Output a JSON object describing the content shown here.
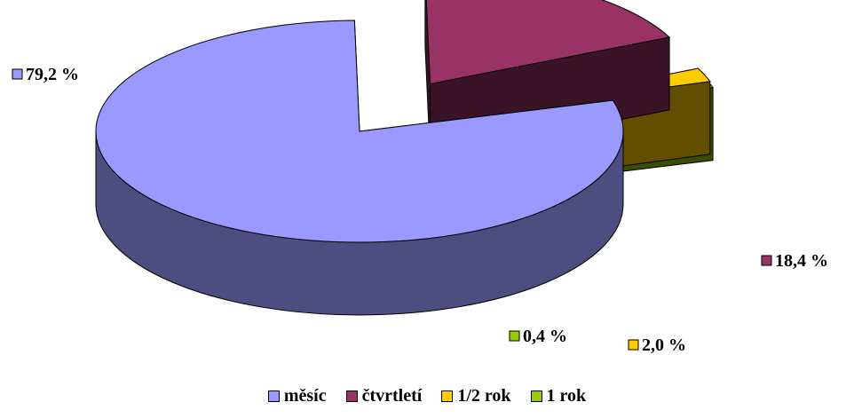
{
  "chart_data": {
    "type": "pie",
    "style": "3d-exploded",
    "categories": [
      "měsíc",
      "čtvrtletí",
      "1/2 rok",
      "1 rok"
    ],
    "values": [
      79.2,
      18.4,
      2.0,
      0.4
    ],
    "data_labels": [
      "79,2 %",
      "18,4 %",
      "2,0 %",
      "0,4 %"
    ],
    "colors": [
      "#9999ff",
      "#993366",
      "#ffcc00",
      "#99cc00"
    ],
    "legend_position": "bottom"
  }
}
